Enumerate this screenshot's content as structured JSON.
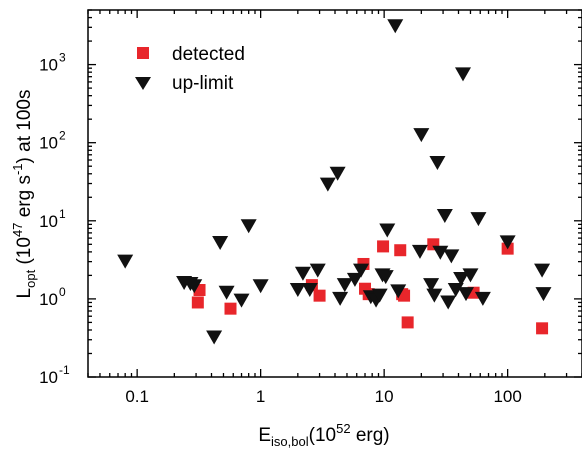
{
  "chart_data": {
    "type": "scatter",
    "title": "",
    "xlabel": {
      "main": "E",
      "sub": "iso,bol",
      "rest": "(10",
      "sup": "52",
      "tail": " erg)"
    },
    "ylabel": {
      "main": "L",
      "sub": "opt",
      "rest1": " (10",
      "sup1": "47",
      "rest2": " erg s",
      "sup2": "-1",
      "rest3": ") at 100s"
    },
    "x_scale": "log",
    "y_scale": "log",
    "xlim": [
      0.04,
      400
    ],
    "ylim": [
      0.1,
      5000
    ],
    "x_ticks": [
      {
        "value": 0.1,
        "label": "0.1"
      },
      {
        "value": 1,
        "label": "1"
      },
      {
        "value": 10,
        "label": "10"
      },
      {
        "value": 100,
        "label": "100"
      }
    ],
    "y_ticks": [
      {
        "value": 0.1,
        "base": "10",
        "exp": "-1"
      },
      {
        "value": 1,
        "base": "10",
        "exp": "0"
      },
      {
        "value": 10,
        "base": "10",
        "exp": "1"
      },
      {
        "value": 100,
        "base": "10",
        "exp": "2"
      },
      {
        "value": 1000,
        "base": "10",
        "exp": "3"
      }
    ],
    "grid": false,
    "legend_position": "top-left",
    "series": [
      {
        "name": "detected",
        "marker": "square",
        "color": "#e8262b",
        "points": [
          [
            0.31,
            0.9
          ],
          [
            0.32,
            1.3
          ],
          [
            0.57,
            0.75
          ],
          [
            2.6,
            1.5
          ],
          [
            3.0,
            1.1
          ],
          [
            6.8,
            2.8
          ],
          [
            7.0,
            1.35
          ],
          [
            7.5,
            1.15
          ],
          [
            9.8,
            4.7
          ],
          [
            13.5,
            4.2
          ],
          [
            14.0,
            1.15
          ],
          [
            14.5,
            1.1
          ],
          [
            15.5,
            0.5
          ],
          [
            25.0,
            5.0
          ],
          [
            53.0,
            1.2
          ],
          [
            100.0,
            4.4
          ],
          [
            190.0,
            0.42
          ]
        ]
      },
      {
        "name": "up-limit",
        "marker": "triangle-down",
        "color": "#111111",
        "points": [
          [
            0.08,
            3.0
          ],
          [
            0.24,
            1.6
          ],
          [
            0.27,
            1.55
          ],
          [
            0.29,
            1.45
          ],
          [
            0.42,
            0.32
          ],
          [
            0.47,
            5.2
          ],
          [
            0.53,
            1.2
          ],
          [
            0.7,
            0.95
          ],
          [
            0.8,
            8.5
          ],
          [
            1.0,
            1.45
          ],
          [
            2.0,
            1.3
          ],
          [
            2.2,
            2.1
          ],
          [
            2.5,
            1.3
          ],
          [
            2.9,
            2.3
          ],
          [
            3.5,
            29.0
          ],
          [
            4.2,
            40.0
          ],
          [
            4.4,
            1.0
          ],
          [
            4.8,
            1.5
          ],
          [
            5.8,
            1.75
          ],
          [
            6.5,
            2.3
          ],
          [
            7.8,
            1.05
          ],
          [
            8.6,
            0.95
          ],
          [
            9.2,
            1.1
          ],
          [
            9.7,
            2.0
          ],
          [
            10.3,
            1.9
          ],
          [
            10.6,
            7.5
          ],
          [
            12.3,
            3100.0
          ],
          [
            13.0,
            1.25
          ],
          [
            19.5,
            4.0
          ],
          [
            20.0,
            125.0
          ],
          [
            24.0,
            1.5
          ],
          [
            25.5,
            1.1
          ],
          [
            27.0,
            55.0
          ],
          [
            28.5,
            3.9
          ],
          [
            31.0,
            11.5
          ],
          [
            33.0,
            0.9
          ],
          [
            35.0,
            3.5
          ],
          [
            38.0,
            1.3
          ],
          [
            42.0,
            1.8
          ],
          [
            43.5,
            750.0
          ],
          [
            46.0,
            1.15
          ],
          [
            50.0,
            2.0
          ],
          [
            58.0,
            10.5
          ],
          [
            63.0,
            1.0
          ],
          [
            100.0,
            5.3
          ],
          [
            190.0,
            2.3
          ],
          [
            195.0,
            1.15
          ]
        ]
      }
    ]
  }
}
